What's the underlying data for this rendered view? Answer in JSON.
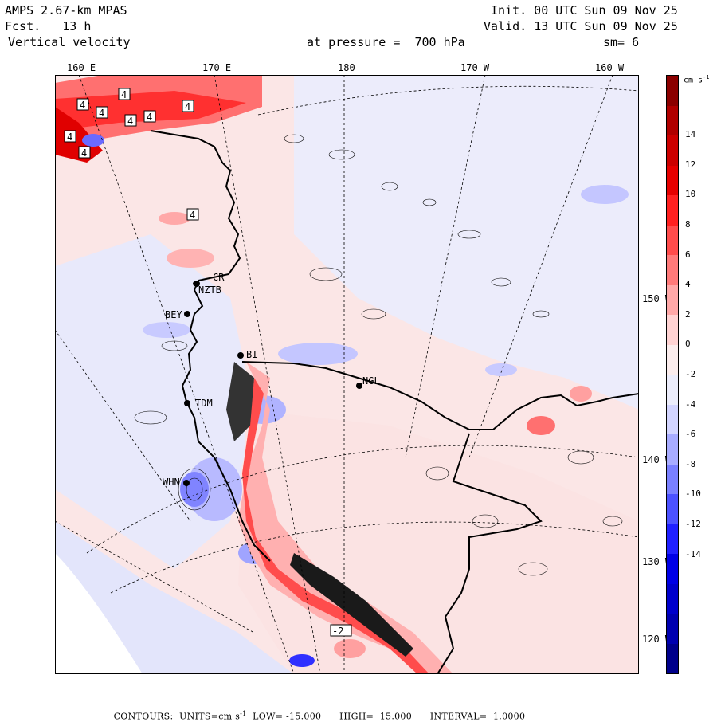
{
  "header": {
    "title": "AMPS 2.67-km MPAS",
    "forecast": "Fcst.   13 h",
    "field": "Vertical velocity",
    "level": "at pressure =  700 hPa",
    "init": "Init. 00 UTC Sun 09 Nov 25",
    "valid": "Valid. 13 UTC Sun 09 Nov 25",
    "smoothing": "sm= 6"
  },
  "longitude_ticks": [
    "160 E",
    "170 E",
    "180",
    "170 W",
    "160 W"
  ],
  "latitude_ticks": [
    "150 W",
    "140 W",
    "130 W",
    "120 W"
  ],
  "stations": [
    "CR",
    "NZTB",
    "BEY",
    "BI",
    "NGL",
    "TDM",
    "WHN"
  ],
  "contour_labels": [
    "4",
    "4",
    "4",
    "4",
    "4",
    "4",
    "4",
    "4",
    "4",
    "-2"
  ],
  "colorbar": {
    "units": "cm s",
    "units_exponent": "-1",
    "labels": [
      "14",
      "12",
      "10",
      "8",
      "6",
      "4",
      "2",
      "0",
      "-2",
      "-4",
      "-6",
      "-8",
      "-10",
      "-12",
      "-14"
    ],
    "colors": [
      "#8b0000",
      "#b00000",
      "#cc0000",
      "#e60000",
      "#ff2020",
      "#ff4c4c",
      "#ff7a7a",
      "#ffa8a8",
      "#ffd3d3",
      "#fbeded",
      "#ecedfb",
      "#d3d5ff",
      "#a8acff",
      "#7a80ff",
      "#4c52ff",
      "#2020ff",
      "#0000e6",
      "#0000cc",
      "#0000b0",
      "#00008b"
    ]
  },
  "footer": {
    "contours": "CONTOURS:  UNITS=cm s",
    "units_exponent": "-1",
    "low": "LOW= -15.000",
    "high": "HIGH=  15.000",
    "interval": "INTERVAL=  1.0000"
  }
}
